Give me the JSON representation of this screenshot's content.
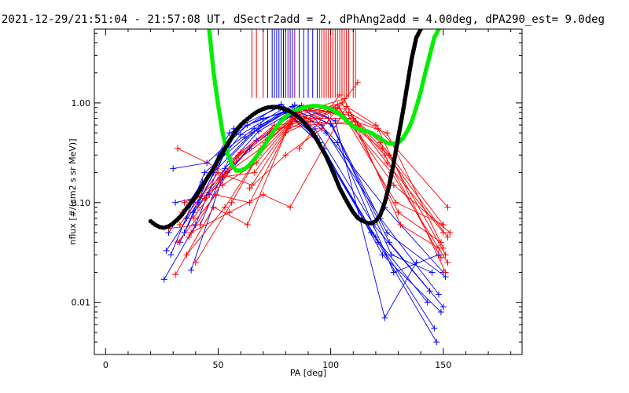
{
  "chart_data": {
    "type": "line",
    "title": "2021-12-29/21:51:04 - 21:57:08 UT, dSectr2add = 2, dPhAng2add = 4.00deg, dPA290_est=   9.0deg",
    "xlabel": "PA [deg]",
    "ylabel": "nflux [#/(cm2 s sr MeV)]",
    "xlim": [
      -5,
      185
    ],
    "ylim": [
      0.003,
      5.5
    ],
    "yscale": "log",
    "xticks": [
      0,
      50,
      100,
      150
    ],
    "xtick_labels": [
      "0",
      "50",
      "100",
      "150"
    ],
    "yticks": [
      0.01,
      0.1,
      1
    ],
    "ytick_labels": [
      "0.01",
      "0.10",
      "1.00"
    ],
    "grid": false,
    "colors": {
      "blue": "#0000ff",
      "red": "#ff0000",
      "green": "#00ee00",
      "black": "#000000",
      "purple": "#800080"
    },
    "series": [
      {
        "color": "blue",
        "marker": "plus",
        "traces": [
          {
            "x": [
              26,
              40,
              57,
              77,
              92,
              118,
              143
            ],
            "y": [
              0.017,
              0.06,
              0.55,
              0.9,
              0.5,
              0.05,
              0.01
            ]
          },
          {
            "x": [
              27,
              41,
              58,
              78,
              93,
              119,
              144
            ],
            "y": [
              0.033,
              0.1,
              0.5,
              0.97,
              0.55,
              0.06,
              0.013
            ]
          },
          {
            "x": [
              28,
              43,
              60,
              79,
              94,
              120,
              146
            ],
            "y": [
              0.05,
              0.16,
              0.48,
              0.88,
              0.44,
              0.045,
              0.0055
            ]
          },
          {
            "x": [
              29,
              44,
              62,
              80,
              95,
              121,
              147
            ],
            "y": [
              0.03,
              0.2,
              0.45,
              0.8,
              0.4,
              0.04,
              0.004
            ]
          },
          {
            "x": [
              30,
              45,
              63,
              81,
              96,
              122,
              148
            ],
            "y": [
              0.22,
              0.25,
              0.6,
              0.85,
              0.6,
              0.07,
              0.012
            ]
          },
          {
            "x": [
              31,
              46,
              64,
              82,
              97,
              123,
              149
            ],
            "y": [
              0.1,
              0.12,
              0.35,
              0.75,
              0.35,
              0.03,
              0.008
            ]
          },
          {
            "x": [
              33,
              48,
              65,
              83,
              98,
              124,
              150
            ],
            "y": [
              0.04,
              0.2,
              0.5,
              0.92,
              0.5,
              0.09,
              0.02
            ]
          },
          {
            "x": [
              35,
              50,
              66,
              84,
              99,
              125,
              151
            ],
            "y": [
              0.05,
              0.3,
              0.55,
              0.95,
              0.7,
              0.05,
              0.018
            ]
          },
          {
            "x": [
              38,
              52,
              67,
              85,
              100,
              126,
              150
            ],
            "y": [
              0.021,
              0.18,
              0.42,
              0.82,
              0.62,
              0.04,
              0.009
            ]
          },
          {
            "x": [
              39,
              53,
              68,
              86,
              101,
              127,
              145
            ],
            "y": [
              0.08,
              0.22,
              0.52,
              0.9,
              0.58,
              0.03,
              0.02
            ]
          },
          {
            "x": [
              42,
              55,
              69,
              87,
              102,
              124,
              138
            ],
            "y": [
              0.06,
              0.28,
              0.6,
              0.94,
              0.66,
              0.007,
              0.025
            ]
          },
          {
            "x": [
              36,
              55,
              70,
              88,
              103,
              128,
              148
            ],
            "y": [
              0.07,
              0.5,
              0.7,
              0.9,
              0.4,
              0.02,
              0.03
            ]
          }
        ]
      },
      {
        "color": "red",
        "marker": "plus",
        "traces": [
          {
            "x": [
              31,
              48,
              63,
              80,
              100,
              125,
              150
            ],
            "y": [
              0.019,
              0.09,
              0.06,
              0.5,
              0.8,
              0.5,
              0.035
            ]
          },
          {
            "x": [
              32,
              49,
              64,
              81,
              101,
              126,
              151
            ],
            "y": [
              0.04,
              0.12,
              0.1,
              0.55,
              0.85,
              0.3,
              0.03
            ]
          },
          {
            "x": [
              33,
              50,
              65,
              82,
              102,
              127,
              152
            ],
            "y": [
              0.06,
              0.2,
              0.15,
              0.6,
              0.9,
              0.2,
              0.025
            ]
          },
          {
            "x": [
              34,
              51,
              66,
              83,
              103,
              128,
              153
            ],
            "y": [
              0.08,
              0.18,
              0.2,
              0.65,
              0.95,
              0.15,
              0.05
            ]
          },
          {
            "x": [
              35,
              52,
              67,
              84,
              104,
              129,
              150
            ],
            "y": [
              0.1,
              0.15,
              0.25,
              0.7,
              0.88,
              0.1,
              0.06
            ]
          },
          {
            "x": [
              36,
              53,
              68,
              85,
              105,
              130,
              149
            ],
            "y": [
              0.03,
              0.09,
              0.3,
              0.75,
              1.0,
              0.08,
              0.04
            ]
          },
          {
            "x": [
              32,
              54,
              69,
              86,
              106,
              131,
              148
            ],
            "y": [
              0.35,
              0.2,
              0.35,
              0.8,
              1.1,
              0.06,
              0.035
            ]
          },
          {
            "x": [
              38,
              55,
              70,
              82,
              107,
              120,
              152
            ],
            "y": [
              0.05,
              0.08,
              0.12,
              0.09,
              0.92,
              0.6,
              0.09
            ]
          },
          {
            "x": [
              40,
              56,
              71,
              87,
              108,
              121,
              151
            ],
            "y": [
              0.025,
              0.1,
              0.4,
              0.85,
              0.8,
              0.55,
              0.02
            ]
          },
          {
            "x": [
              37,
              57,
              72,
              88,
              109,
              122,
              150
            ],
            "y": [
              0.045,
              0.25,
              0.45,
              0.9,
              0.75,
              0.4,
              0.06
            ]
          },
          {
            "x": [
              39,
              58,
              73,
              89,
              110,
              123,
              152
            ],
            "y": [
              0.07,
              0.28,
              0.5,
              0.7,
              0.7,
              0.35,
              0.045
            ]
          },
          {
            "x": [
              41,
              59,
              74,
              90,
              111,
              124,
              149
            ],
            "y": [
              0.09,
              0.3,
              0.55,
              0.6,
              0.65,
              0.3,
              0.028
            ]
          },
          {
            "x": [
              44,
              60,
              75,
              91,
              112,
              125,
              150
            ],
            "y": [
              0.11,
              0.32,
              0.6,
              0.65,
              0.6,
              0.25,
              0.05
            ]
          },
          {
            "x": [
              64,
              80,
              96,
              112
            ],
            "y": [
              0.14,
              0.3,
              0.55,
              1.6
            ]
          },
          {
            "x": [
              86,
              104
            ],
            "y": [
              0.35,
              1.2
            ]
          },
          {
            "x": [
              28,
              42
            ],
            "y": [
              0.055,
              0.06
            ]
          }
        ]
      },
      {
        "name": "",
        "color": "green",
        "style": "thick",
        "x": [
          46,
          48,
          50,
          52,
          54,
          56,
          58,
          60,
          62,
          64,
          66,
          68,
          70,
          72,
          74,
          76,
          78,
          80,
          82,
          84,
          86,
          88,
          90,
          92,
          94,
          96,
          98,
          100,
          102,
          104,
          106,
          108,
          110,
          112,
          114,
          116,
          118,
          120,
          122,
          124,
          126,
          128,
          130,
          132,
          134,
          136,
          138,
          140,
          142,
          144,
          146,
          148
        ],
        "y": [
          5.5,
          2.0,
          0.95,
          0.5,
          0.32,
          0.24,
          0.21,
          0.21,
          0.22,
          0.24,
          0.27,
          0.31,
          0.36,
          0.42,
          0.5,
          0.58,
          0.66,
          0.73,
          0.79,
          0.84,
          0.87,
          0.9,
          0.92,
          0.93,
          0.93,
          0.92,
          0.9,
          0.87,
          0.82,
          0.77,
          0.7,
          0.63,
          0.58,
          0.55,
          0.53,
          0.52,
          0.5,
          0.47,
          0.44,
          0.41,
          0.39,
          0.39,
          0.4,
          0.44,
          0.52,
          0.65,
          0.9,
          1.3,
          2.0,
          3.0,
          4.5,
          5.5
        ]
      },
      {
        "name": "",
        "color": "black",
        "style": "thick",
        "x": [
          20,
          22,
          24,
          26,
          28,
          30,
          32,
          34,
          36,
          38,
          40,
          42,
          44,
          46,
          48,
          50,
          52,
          54,
          56,
          58,
          60,
          62,
          64,
          66,
          68,
          70,
          72,
          74,
          76,
          78,
          80,
          82,
          84,
          86,
          88,
          90,
          92,
          94,
          96,
          98,
          100,
          102,
          104,
          106,
          108,
          110,
          112,
          114,
          116,
          118,
          120,
          122,
          124,
          126,
          128,
          130,
          132,
          134,
          136,
          138,
          140
        ],
        "y": [
          0.065,
          0.06,
          0.057,
          0.056,
          0.058,
          0.062,
          0.068,
          0.076,
          0.088,
          0.1,
          0.115,
          0.135,
          0.16,
          0.19,
          0.22,
          0.27,
          0.32,
          0.38,
          0.45,
          0.53,
          0.6,
          0.66,
          0.72,
          0.78,
          0.83,
          0.87,
          0.9,
          0.91,
          0.91,
          0.89,
          0.86,
          0.82,
          0.77,
          0.71,
          0.64,
          0.57,
          0.5,
          0.42,
          0.35,
          0.29,
          0.23,
          0.18,
          0.14,
          0.115,
          0.095,
          0.08,
          0.07,
          0.066,
          0.063,
          0.062,
          0.065,
          0.075,
          0.1,
          0.15,
          0.25,
          0.45,
          0.8,
          1.5,
          2.8,
          4.5,
          5.5
        ]
      }
    ],
    "markers": {
      "type": "vertical_lines",
      "y_range": [
        1.12,
        5.5
      ],
      "lines": [
        {
          "x": 65,
          "color": "red"
        },
        {
          "x": 67,
          "color": "red"
        },
        {
          "x": 70,
          "color": "red"
        },
        {
          "x": 72,
          "color": "blue"
        },
        {
          "x": 74,
          "color": "blue"
        },
        {
          "x": 75,
          "color": "blue"
        },
        {
          "x": 76,
          "color": "blue"
        },
        {
          "x": 77,
          "color": "blue"
        },
        {
          "x": 78,
          "color": "blue"
        },
        {
          "x": 79,
          "color": "blue"
        },
        {
          "x": 80,
          "color": "blue"
        },
        {
          "x": 81,
          "color": "purple"
        },
        {
          "x": 82,
          "color": "blue"
        },
        {
          "x": 83,
          "color": "blue"
        },
        {
          "x": 84,
          "color": "purple"
        },
        {
          "x": 86,
          "color": "blue"
        },
        {
          "x": 88,
          "color": "blue"
        },
        {
          "x": 90,
          "color": "blue"
        },
        {
          "x": 92,
          "color": "blue"
        },
        {
          "x": 94,
          "color": "blue"
        },
        {
          "x": 95,
          "color": "red"
        },
        {
          "x": 96,
          "color": "red"
        },
        {
          "x": 97,
          "color": "red"
        },
        {
          "x": 98,
          "color": "red"
        },
        {
          "x": 99,
          "color": "red"
        },
        {
          "x": 100,
          "color": "red"
        },
        {
          "x": 101,
          "color": "red"
        },
        {
          "x": 102,
          "color": "red"
        },
        {
          "x": 103,
          "color": "red"
        },
        {
          "x": 104,
          "color": "red"
        },
        {
          "x": 105,
          "color": "red"
        },
        {
          "x": 106,
          "color": "red"
        },
        {
          "x": 107,
          "color": "red"
        },
        {
          "x": 108,
          "color": "red"
        },
        {
          "x": 110,
          "color": "red"
        },
        {
          "x": 111,
          "color": "red"
        }
      ]
    }
  }
}
